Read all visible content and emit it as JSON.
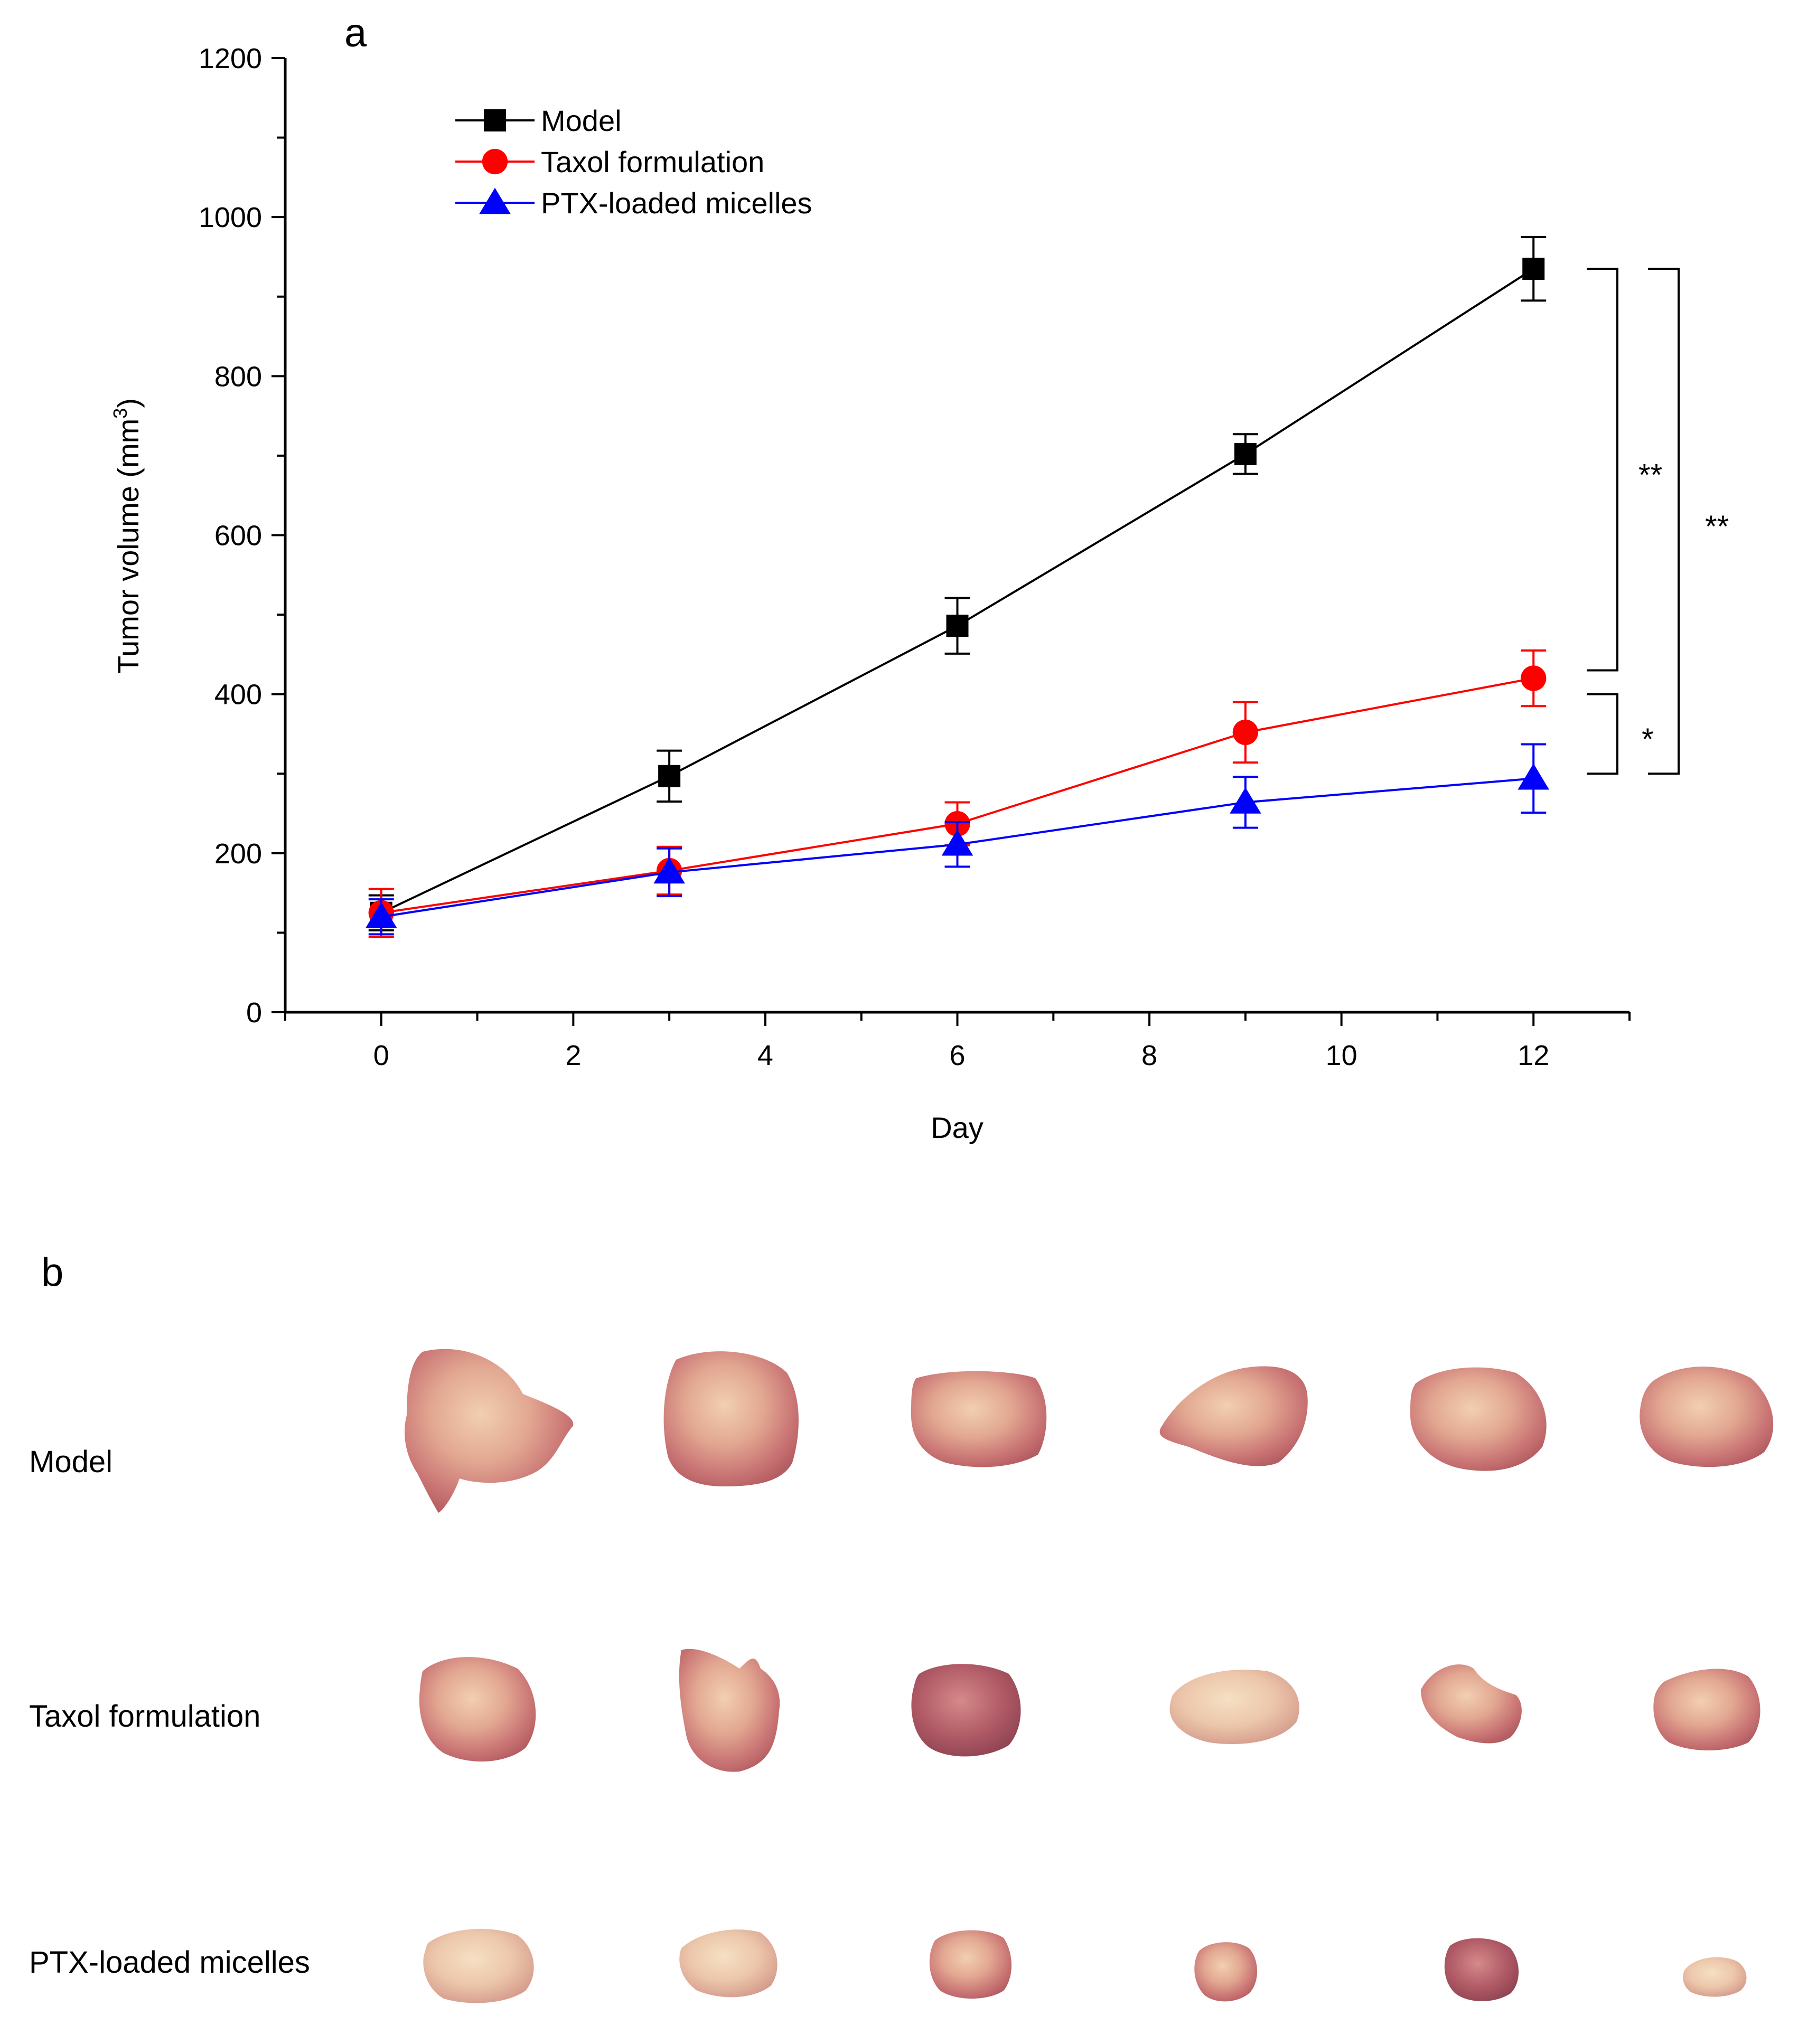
{
  "figure": {
    "panel_a_label": "a",
    "panel_b_label": "b"
  },
  "chart_data": {
    "type": "line",
    "xlabel": "Day",
    "ylabel": "Tumor volume (mm",
    "ylabel_superscript": "3",
    "ylabel_suffix": ")",
    "xlim": [
      -1,
      13
    ],
    "ylim": [
      0,
      1200
    ],
    "x_ticks": [
      0,
      2,
      4,
      6,
      8,
      10,
      12
    ],
    "y_ticks": [
      0,
      200,
      400,
      600,
      800,
      1000,
      1200
    ],
    "grid": false,
    "legend_position": "top-left",
    "x": [
      0,
      3,
      6,
      9,
      12
    ],
    "series": [
      {
        "name": "Model",
        "color": "#000000",
        "marker": "square",
        "values": [
          125,
          297,
          486,
          702,
          935
        ],
        "errors": [
          22,
          32,
          35,
          25,
          40
        ]
      },
      {
        "name": "Taxol formulation",
        "color": "#ff0000",
        "marker": "circle",
        "values": [
          125,
          178,
          237,
          352,
          420
        ],
        "errors": [
          30,
          30,
          27,
          38,
          35
        ]
      },
      {
        "name": "PTX-loaded micelles",
        "color": "#0000ff",
        "marker": "triangle",
        "values": [
          120,
          176,
          211,
          264,
          294
        ],
        "errors": [
          22,
          30,
          28,
          32,
          43
        ]
      }
    ],
    "annotations": [
      {
        "text": "**",
        "type": "bracket",
        "from": 935,
        "to": 430
      },
      {
        "text": "*",
        "type": "bracket",
        "from": 400,
        "to": 300
      },
      {
        "text": "**",
        "type": "bracket",
        "from": 935,
        "to": 300
      }
    ]
  },
  "panel_b": {
    "rows": [
      {
        "label": "Model",
        "tumor_count": 6
      },
      {
        "label": "Taxol formulation",
        "tumor_count": 6
      },
      {
        "label": "PTX-loaded micelles",
        "tumor_count": 6
      }
    ]
  }
}
